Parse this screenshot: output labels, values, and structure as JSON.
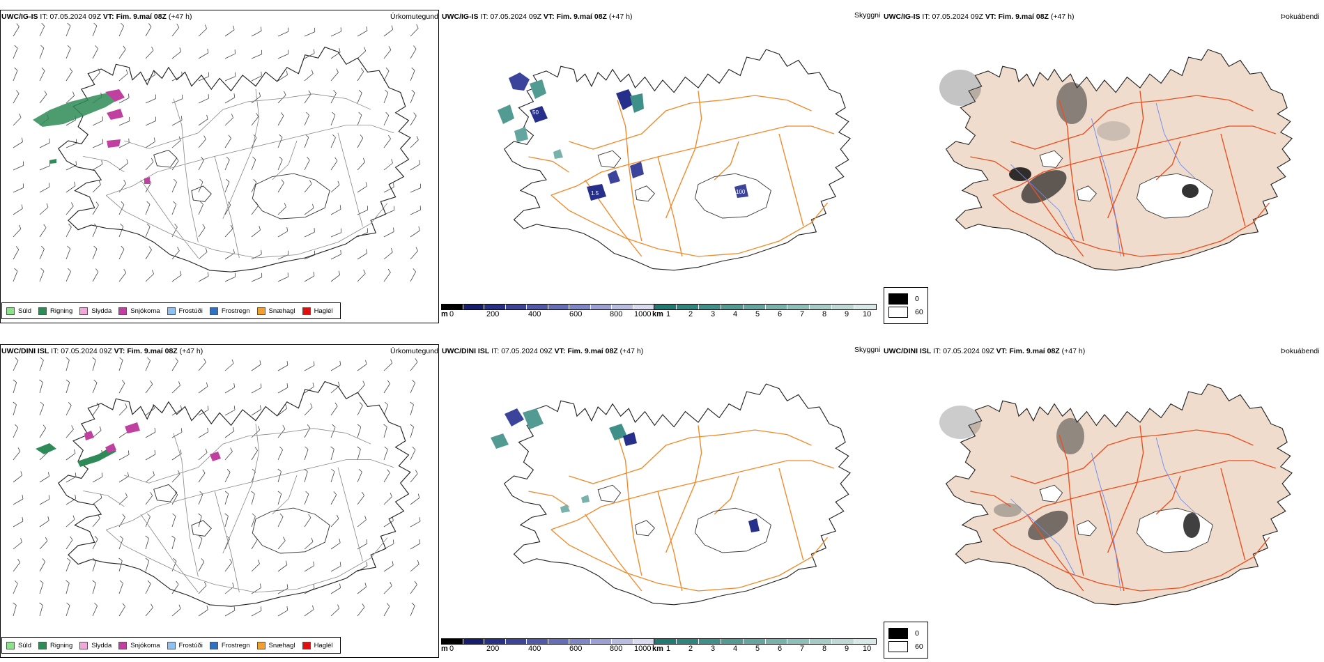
{
  "rows": [
    {
      "model": "UWC/IG-IS",
      "it_label": "IT:",
      "it_value": "07.05.2024 09Z",
      "vt_label": "VT:",
      "vt_value": "Fim. 9.maí 08Z",
      "lead": "(+47 h)"
    },
    {
      "model": "UWC/DINI ISL",
      "it_label": "IT:",
      "it_value": "07.05.2024 09Z",
      "vt_label": "VT:",
      "vt_value": "Fim. 9.maí 08Z",
      "lead": "(+47 h)"
    }
  ],
  "panel_titles": {
    "precip": "Úrkomutegund",
    "clouds": "Skyggni",
    "fog": "Þokuábendi"
  },
  "precip_legend": [
    {
      "label": "Súld",
      "color": "#8ee08a"
    },
    {
      "label": "Rigning",
      "color": "#2e8b57"
    },
    {
      "label": "Slydda",
      "color": "#f0a8d8"
    },
    {
      "label": "Snjókoma",
      "color": "#c040a0"
    },
    {
      "label": "Frostúði",
      "color": "#90c0f0"
    },
    {
      "label": "Frostregn",
      "color": "#3070c0"
    },
    {
      "label": "Snæhagl",
      "color": "#f0a030"
    },
    {
      "label": "Haglél",
      "color": "#e01010"
    }
  ],
  "ceiling_scale": {
    "unit": "m",
    "ticks": [
      "0",
      "200",
      "400",
      "600",
      "800",
      "1000"
    ],
    "colors": [
      "#000000",
      "#161c6e",
      "#262f8a",
      "#3b439b",
      "#5158aa",
      "#676eb8",
      "#7f86c6",
      "#9aa0d4",
      "#b8bce2",
      "#d8daef"
    ]
  },
  "visibility_scale": {
    "unit": "km",
    "ticks": [
      "1",
      "2",
      "3",
      "4",
      "5",
      "6",
      "7",
      "8",
      "9",
      "10"
    ],
    "colors": [
      "#1f7a72",
      "#2e857d",
      "#3f9088",
      "#519b93",
      "#64a69f",
      "#78b2ab",
      "#8ebeb8",
      "#a5cbc6",
      "#bed9d5",
      "#d8e8e6"
    ]
  },
  "fog_legend": [
    {
      "label": "0",
      "color": "#000000"
    },
    {
      "label": "60",
      "color": "#ffffff"
    }
  ],
  "map_labels": {
    "cloud_base_values": [
      "50",
      "1.5",
      "100"
    ]
  }
}
